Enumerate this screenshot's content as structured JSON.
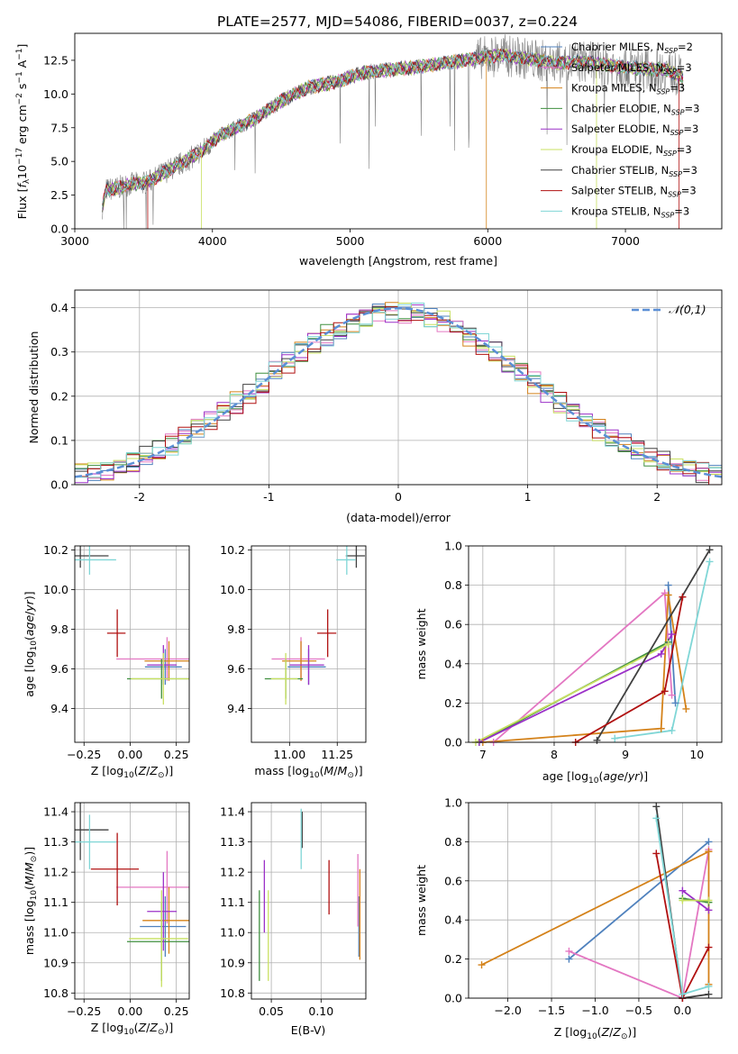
{
  "figure": {
    "title": "PLATE=2577, MJD=54086, FIBERID=0037, z=0.224"
  },
  "chart_data": [
    {
      "id": "spectrum",
      "type": "line",
      "title": "PLATE=2577, MJD=54086, FIBERID=0037, z=0.224",
      "xlabel": "wavelength [Angstrom, rest frame]",
      "ylabel": "Flux [f_λ10^-17 erg cm^-2 s^-1 A^-1]",
      "xlim": [
        3000,
        7700
      ],
      "ylim": [
        0,
        14.5
      ],
      "xticks": [
        3000,
        4000,
        5000,
        6000,
        7000
      ],
      "yticks": [
        0.0,
        2.5,
        5.0,
        7.5,
        10.0,
        12.5
      ],
      "ytick_labels": [
        "0.0",
        "2.5",
        "5.0",
        "7.5",
        "10.0",
        "12.5"
      ],
      "grid": false,
      "legend_position": "right",
      "observed_color": "#808080",
      "continuum": {
        "x": [
          3200,
          3230,
          3300,
          3400,
          3500,
          3560,
          3650,
          3750,
          3850,
          3950,
          4050,
          4150,
          4300,
          4500,
          4700,
          4900,
          5100,
          5300,
          5500,
          5700,
          5900,
          6100,
          6300,
          6500,
          6700,
          6900,
          7100,
          7300,
          7420
        ],
        "y": [
          1.6,
          2.9,
          3.0,
          3.3,
          3.4,
          3.6,
          4.2,
          4.7,
          5.3,
          6.0,
          6.9,
          7.4,
          8.1,
          9.5,
          10.5,
          10.9,
          11.6,
          11.8,
          12.0,
          12.3,
          12.6,
          12.9,
          12.6,
          12.3,
          12.4,
          12.1,
          11.9,
          11.8,
          11.2
        ]
      },
      "series": [
        {
          "name": "Chabrier MILES, N_SSP=2",
          "label_main": "Chabrier MILES, N",
          "label_sub": "SSP",
          "label_tail": "=2",
          "color": "#4f81bd"
        },
        {
          "name": "Salpeter MILES, N_SSP=3",
          "label_main": "Salpeter MILES, N",
          "label_sub": "SSP",
          "label_tail": "=3",
          "color": "#e377c2"
        },
        {
          "name": "Kroupa MILES, N_SSP=3",
          "label_main": "Kroupa MILES, N",
          "label_sub": "SSP",
          "label_tail": "=3",
          "color": "#d4821a"
        },
        {
          "name": "Chabrier ELODIE, N_SSP=3",
          "label_main": "Chabrier ELODIE, N",
          "label_sub": "SSP",
          "label_tail": "=3",
          "color": "#3f8f3f"
        },
        {
          "name": "Salpeter ELODIE, N_SSP=3",
          "label_main": "Salpeter ELODIE, N",
          "label_sub": "SSP",
          "label_tail": "=3",
          "color": "#9b30c8"
        },
        {
          "name": "Kroupa ELODIE, N_SSP=3",
          "label_main": "Kroupa ELODIE, N",
          "label_sub": "SSP",
          "label_tail": "=3",
          "color": "#c8e060"
        },
        {
          "name": "Chabrier STELIB, N_SSP=3",
          "label_main": "Chabrier STELIB, N",
          "label_sub": "SSP",
          "label_tail": "=3",
          "color": "#404040"
        },
        {
          "name": "Salpeter STELIB, N_SSP=3",
          "label_main": "Salpeter STELIB, N",
          "label_sub": "SSP",
          "label_tail": "=3",
          "color": "#b01010"
        },
        {
          "name": "Kroupa STELIB, N_SSP=3",
          "label_main": "Kroupa STELIB, N",
          "label_sub": "SSP",
          "label_tail": "=3",
          "color": "#7fd6d6"
        }
      ]
    },
    {
      "id": "residuals",
      "type": "line",
      "xlabel": "(data-model)/error",
      "ylabel": "Normed distribution",
      "xlim": [
        -2.5,
        2.5
      ],
      "ylim": [
        0,
        0.44
      ],
      "xticks": [
        -2,
        -1,
        0,
        1,
        2
      ],
      "yticks": [
        0.0,
        0.1,
        0.2,
        0.3,
        0.4
      ],
      "ytick_labels": [
        "0.0",
        "0.1",
        "0.2",
        "0.3",
        "0.4"
      ],
      "grid": true,
      "legend": "𝒩(0,1)",
      "legend_position": "top-right",
      "normal_color": "#5b8fd6",
      "bin_width": 0.1
    },
    {
      "id": "z-age",
      "type": "scatter",
      "xlabel": "Z [log10(Z/Z⊙)]",
      "ylabel": "age [log10(age/yr)]",
      "xlim": [
        -0.3,
        0.32
      ],
      "ylim": [
        9.23,
        10.22
      ],
      "xticks": [
        -0.25,
        0.0,
        0.25
      ],
      "xtick_labels": [
        "−0.25",
        "0.00",
        "0.25"
      ],
      "yticks": [
        9.4,
        9.6,
        9.8,
        10.0,
        10.2
      ],
      "ytick_labels": [
        "9.4",
        "9.6",
        "9.8",
        "10.0",
        "10.2"
      ],
      "grid": true,
      "points": [
        {
          "x": 0.19,
          "y": 9.61,
          "xerr": 0.2,
          "yerr": 0.18,
          "color": "#4f81bd"
        },
        {
          "x": 0.2,
          "y": 9.65,
          "xerr": 0.5,
          "yerr": 0.22,
          "color": "#e377c2"
        },
        {
          "x": 0.21,
          "y": 9.64,
          "xerr": 0.24,
          "yerr": 0.2,
          "color": "#d4821a"
        },
        {
          "x": 0.17,
          "y": 9.55,
          "xerr": 0.34,
          "yerr": 0.2,
          "color": "#3f8f3f"
        },
        {
          "x": 0.18,
          "y": 9.62,
          "xerr": 0.16,
          "yerr": 0.2,
          "color": "#9b30c8"
        },
        {
          "x": 0.18,
          "y": 9.55,
          "xerr": 0.32,
          "yerr": 0.26,
          "color": "#c8e060"
        },
        {
          "x": -0.27,
          "y": 10.17,
          "xerr": 0.34,
          "yerr": 0.12,
          "color": "#404040"
        },
        {
          "x": -0.07,
          "y": 9.78,
          "xerr": 0.1,
          "yerr": 0.24,
          "color": "#b01010"
        },
        {
          "x": -0.22,
          "y": 10.15,
          "xerr": 0.32,
          "yerr": 0.15,
          "color": "#7fd6d6"
        }
      ]
    },
    {
      "id": "mass-age",
      "type": "scatter",
      "xlabel": "mass [log10(M/M⊙)]",
      "ylabel": "",
      "xlim": [
        10.8,
        11.4
      ],
      "ylim": [
        9.23,
        10.22
      ],
      "xticks": [
        11.0,
        11.25
      ],
      "xtick_labels": [
        "11.00",
        "11.25"
      ],
      "yticks": [
        9.4,
        9.6,
        9.8,
        10.0,
        10.2
      ],
      "ytick_labels": [
        "9.4",
        "9.6",
        "9.8",
        "10.0",
        "10.2"
      ],
      "grid": true,
      "points": [
        {
          "x": 11.1,
          "y": 9.61,
          "xerr": 0.2,
          "yerr": 0.18,
          "color": "#4f81bd"
        },
        {
          "x": 11.06,
          "y": 9.65,
          "xerr": 0.28,
          "yerr": 0.22,
          "color": "#e377c2"
        },
        {
          "x": 11.06,
          "y": 9.64,
          "xerr": 0.18,
          "yerr": 0.2,
          "color": "#d4821a"
        },
        {
          "x": 10.98,
          "y": 9.55,
          "xerr": 0.2,
          "yerr": 0.2,
          "color": "#3f8f3f"
        },
        {
          "x": 11.1,
          "y": 9.62,
          "xerr": 0.18,
          "yerr": 0.2,
          "color": "#9b30c8"
        },
        {
          "x": 10.98,
          "y": 9.55,
          "xerr": 0.14,
          "yerr": 0.26,
          "color": "#c8e060"
        },
        {
          "x": 11.35,
          "y": 10.17,
          "xerr": 0.1,
          "yerr": 0.12,
          "color": "#404040"
        },
        {
          "x": 11.2,
          "y": 9.78,
          "xerr": 0.1,
          "yerr": 0.24,
          "color": "#b01010"
        },
        {
          "x": 11.3,
          "y": 10.15,
          "xerr": 0.1,
          "yerr": 0.15,
          "color": "#7fd6d6"
        }
      ]
    },
    {
      "id": "age-weight",
      "type": "line",
      "xlabel": "age [log10(age/yr)]",
      "ylabel": "mass weight",
      "xlim": [
        6.8,
        10.35
      ],
      "ylim": [
        0,
        1.0
      ],
      "xticks": [
        7,
        8,
        9,
        10
      ],
      "yticks": [
        0.0,
        0.2,
        0.4,
        0.6,
        0.8,
        1.0
      ],
      "ytick_labels": [
        "0.0",
        "0.2",
        "0.4",
        "0.6",
        "0.8",
        "1.0"
      ],
      "grid": true,
      "series": [
        {
          "name": "Chabrier MILES",
          "color": "#4f81bd",
          "x": [
            9.6,
            9.7
          ],
          "y": [
            0.8,
            0.2
          ]
        },
        {
          "name": "Salpeter MILES",
          "color": "#e377c2",
          "x": [
            7.15,
            9.55,
            9.65
          ],
          "y": [
            0.0,
            0.76,
            0.24
          ]
        },
        {
          "name": "Kroupa MILES",
          "color": "#d4821a",
          "x": [
            7.0,
            9.5,
            9.6,
            9.85
          ],
          "y": [
            0.0,
            0.07,
            0.75,
            0.17
          ]
        },
        {
          "name": "Chabrier ELODIE",
          "color": "#3f8f3f",
          "x": [
            6.95,
            9.6
          ],
          "y": [
            0.0,
            0.51
          ]
        },
        {
          "name": "Salpeter ELODIE",
          "color": "#9b30c8",
          "x": [
            6.95,
            9.5,
            9.65
          ],
          "y": [
            0.0,
            0.45,
            0.55
          ]
        },
        {
          "name": "Kroupa ELODIE",
          "color": "#c8e060",
          "x": [
            6.9,
            9.6
          ],
          "y": [
            0.0,
            0.5
          ]
        },
        {
          "name": "Chabrier STELIB",
          "color": "#404040",
          "x": [
            8.6,
            10.18
          ],
          "y": [
            0.01,
            0.98
          ]
        },
        {
          "name": "Salpeter STELIB",
          "color": "#b01010",
          "x": [
            8.3,
            9.55,
            9.8
          ],
          "y": [
            0.0,
            0.26,
            0.74
          ]
        },
        {
          "name": "Kroupa STELIB",
          "color": "#7fd6d6",
          "x": [
            8.85,
            9.65,
            10.18
          ],
          "y": [
            0.02,
            0.06,
            0.92
          ]
        }
      ]
    },
    {
      "id": "z-mass",
      "type": "scatter",
      "xlabel": "Z [log10(Z/Z⊙)]",
      "ylabel": "mass [log10(M/M⊙)]",
      "xlim": [
        -0.3,
        0.32
      ],
      "ylim": [
        10.78,
        11.43
      ],
      "xticks": [
        -0.25,
        0.0,
        0.25
      ],
      "xtick_labels": [
        "−0.25",
        "0.00",
        "0.25"
      ],
      "yticks": [
        10.8,
        10.9,
        11.0,
        11.1,
        11.2,
        11.3,
        11.4
      ],
      "ytick_labels": [
        "10.8",
        "10.9",
        "11.0",
        "11.1",
        "11.2",
        "11.3",
        "11.4"
      ],
      "grid": true,
      "points": [
        {
          "x": 0.19,
          "y": 11.02,
          "xerr": 0.25,
          "yerr": 0.2,
          "color": "#4f81bd"
        },
        {
          "x": 0.2,
          "y": 11.15,
          "xerr": 0.5,
          "yerr": 0.24,
          "color": "#e377c2"
        },
        {
          "x": 0.21,
          "y": 11.04,
          "xerr": 0.26,
          "yerr": 0.22,
          "color": "#d4821a"
        },
        {
          "x": 0.17,
          "y": 10.97,
          "xerr": 0.34,
          "yerr": 0.26,
          "color": "#3f8f3f"
        },
        {
          "x": 0.18,
          "y": 11.07,
          "xerr": 0.16,
          "yerr": 0.26,
          "color": "#9b30c8"
        },
        {
          "x": 0.17,
          "y": 10.98,
          "xerr": 0.32,
          "yerr": 0.32,
          "color": "#c8e060"
        },
        {
          "x": -0.27,
          "y": 11.34,
          "xerr": 0.34,
          "yerr": 0.2,
          "color": "#404040"
        },
        {
          "x": -0.07,
          "y": 11.21,
          "xerr": 0.26,
          "yerr": 0.24,
          "color": "#b01010"
        },
        {
          "x": -0.22,
          "y": 11.3,
          "xerr": 0.32,
          "yerr": 0.18,
          "color": "#7fd6d6"
        }
      ]
    },
    {
      "id": "ebv-mass",
      "type": "scatter",
      "xlabel": "E(B-V)",
      "ylabel": "",
      "xlim": [
        0.03,
        0.145
      ],
      "ylim": [
        10.78,
        11.43
      ],
      "xticks": [
        0.05,
        0.1
      ],
      "xtick_labels": [
        "0.05",
        "0.10"
      ],
      "yticks": [
        10.8,
        10.9,
        11.0,
        11.1,
        11.2,
        11.3,
        11.4
      ],
      "ytick_labels": [
        "10.8",
        "10.9",
        "11.0",
        "11.1",
        "11.2",
        "11.3",
        "11.4"
      ],
      "grid": true,
      "points": [
        {
          "x": 0.138,
          "y": 11.02,
          "yerr": 0.2,
          "color": "#4f81bd"
        },
        {
          "x": 0.137,
          "y": 11.14,
          "yerr": 0.24,
          "color": "#e377c2"
        },
        {
          "x": 0.139,
          "y": 11.06,
          "yerr": 0.3,
          "color": "#d4821a"
        },
        {
          "x": 0.038,
          "y": 10.99,
          "yerr": 0.3,
          "color": "#3f8f3f"
        },
        {
          "x": 0.043,
          "y": 11.12,
          "yerr": 0.24,
          "color": "#9b30c8"
        },
        {
          "x": 0.047,
          "y": 10.99,
          "yerr": 0.3,
          "color": "#c8e060"
        },
        {
          "x": 0.081,
          "y": 11.34,
          "yerr": 0.12,
          "color": "#404040"
        },
        {
          "x": 0.108,
          "y": 11.15,
          "yerr": 0.18,
          "color": "#b01010"
        },
        {
          "x": 0.08,
          "y": 11.31,
          "yerr": 0.2,
          "color": "#7fd6d6"
        }
      ]
    },
    {
      "id": "z-weight",
      "type": "line",
      "xlabel": "Z [log10(Z/Z⊙)]",
      "ylabel": "mass weight",
      "xlim": [
        -2.45,
        0.45
      ],
      "ylim": [
        0,
        1.0
      ],
      "xticks": [
        -2.0,
        -1.5,
        -1.0,
        -0.5,
        0.0
      ],
      "xtick_labels": [
        "−2.0",
        "−1.5",
        "−1.0",
        "−0.5",
        "0.0"
      ],
      "yticks": [
        0.0,
        0.2,
        0.4,
        0.6,
        0.8,
        1.0
      ],
      "ytick_labels": [
        "0.0",
        "0.2",
        "0.4",
        "0.6",
        "0.8",
        "1.0"
      ],
      "grid": true,
      "series": [
        {
          "name": "Chabrier MILES",
          "color": "#4f81bd",
          "x": [
            -1.3,
            0.3
          ],
          "y": [
            0.2,
            0.8
          ]
        },
        {
          "name": "Salpeter MILES",
          "color": "#e377c2",
          "x": [
            -1.3,
            0.0,
            0.3
          ],
          "y": [
            0.24,
            0.0,
            0.76
          ]
        },
        {
          "name": "Kroupa MILES",
          "color": "#d4821a",
          "x": [
            -2.3,
            0.3,
            0.3
          ],
          "y": [
            0.17,
            0.75,
            0.07
          ]
        },
        {
          "name": "Chabrier ELODIE",
          "color": "#3f8f3f",
          "x": [
            0.0,
            0.3
          ],
          "y": [
            0.51,
            0.49
          ]
        },
        {
          "name": "Salpeter ELODIE",
          "color": "#9b30c8",
          "x": [
            0.0,
            0.3
          ],
          "y": [
            0.55,
            0.45
          ]
        },
        {
          "name": "Kroupa ELODIE",
          "color": "#c8e060",
          "x": [
            0.0,
            0.3
          ],
          "y": [
            0.5,
            0.5
          ]
        },
        {
          "name": "Chabrier STELIB",
          "color": "#404040",
          "x": [
            -0.3,
            0.0,
            0.3
          ],
          "y": [
            0.98,
            0.0,
            0.02
          ]
        },
        {
          "name": "Salpeter STELIB",
          "color": "#b01010",
          "x": [
            -0.3,
            0.0,
            0.3
          ],
          "y": [
            0.74,
            0.0,
            0.26
          ]
        },
        {
          "name": "Kroupa STELIB",
          "color": "#7fd6d6",
          "x": [
            -0.3,
            0.0,
            0.3
          ],
          "y": [
            0.92,
            0.02,
            0.06
          ]
        }
      ]
    }
  ]
}
